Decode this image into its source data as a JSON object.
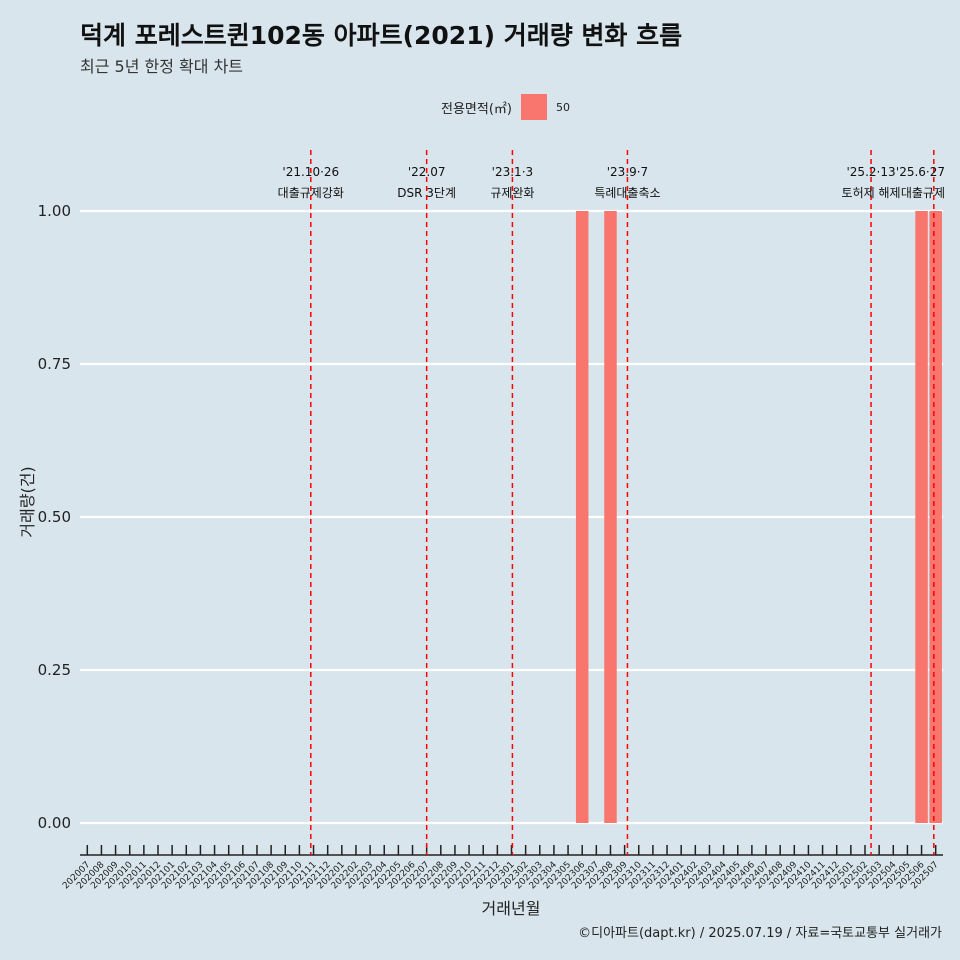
{
  "page": {
    "title": "덕계 포레스트퀸102동 아파트(2021) 거래량 변화 흐름",
    "subtitle": "최근 5년 한정 확대 차트",
    "caption": "©디아파트(dapt.kr) / 2025.07.19 / 자료=국토교통부 실거래가"
  },
  "legend": {
    "title": "전용면적(㎡)",
    "items": [
      {
        "label": "50",
        "color": "#f8766d"
      }
    ]
  },
  "chart_data": {
    "type": "bar",
    "xlabel": "거래년월",
    "ylabel": "거래량(건)",
    "ylim": [
      0,
      1
    ],
    "yticks": [
      "0.00",
      "0.25",
      "0.50",
      "0.75",
      "1.00"
    ],
    "grid": true,
    "legend_position": "top",
    "categories": [
      "202007",
      "202008",
      "202009",
      "202010",
      "202011",
      "202012",
      "202101",
      "202102",
      "202103",
      "202104",
      "202105",
      "202106",
      "202107",
      "202108",
      "202109",
      "202110",
      "202111",
      "202112",
      "202201",
      "202202",
      "202203",
      "202204",
      "202205",
      "202206",
      "202207",
      "202208",
      "202209",
      "202210",
      "202211",
      "202212",
      "202301",
      "202302",
      "202303",
      "202304",
      "202305",
      "202306",
      "202307",
      "202308",
      "202309",
      "202310",
      "202311",
      "202312",
      "202401",
      "202402",
      "202403",
      "202404",
      "202405",
      "202406",
      "202407",
      "202408",
      "202409",
      "202410",
      "202411",
      "202412",
      "202501",
      "202502",
      "202503",
      "202504",
      "202505",
      "202506",
      "202507"
    ],
    "series": [
      {
        "name": "50",
        "color": "#f8766d",
        "values": [
          0,
          0,
          0,
          0,
          0,
          0,
          0,
          0,
          0,
          0,
          0,
          0,
          0,
          0,
          0,
          0,
          0,
          0,
          0,
          0,
          0,
          0,
          0,
          0,
          0,
          0,
          0,
          0,
          0,
          0,
          0,
          0,
          0,
          0,
          0,
          1,
          0,
          1,
          0,
          0,
          0,
          0,
          0,
          0,
          0,
          0,
          0,
          0,
          0,
          0,
          0,
          0,
          0,
          0,
          0,
          0,
          0,
          0,
          0,
          1,
          1
        ]
      }
    ],
    "annotations": [
      {
        "x": "2021-10-26",
        "date": "'21.10·26",
        "label": "대출규제강화"
      },
      {
        "x": "2022-07-01",
        "date": "'22.07",
        "label": "DSR 3단계"
      },
      {
        "x": "2023-01-03",
        "date": "'23.1·3",
        "label": "규제완화"
      },
      {
        "x": "2023-09-07",
        "date": "'23.9·7",
        "label": "특례대출축소"
      },
      {
        "x": "2025-02-13",
        "date": "'25.2·13",
        "label": "토허제 해제"
      },
      {
        "x": "2025-06-27",
        "date": "'25.6·27",
        "label": "대출규제"
      }
    ],
    "annotation_color": "#ff0000"
  }
}
